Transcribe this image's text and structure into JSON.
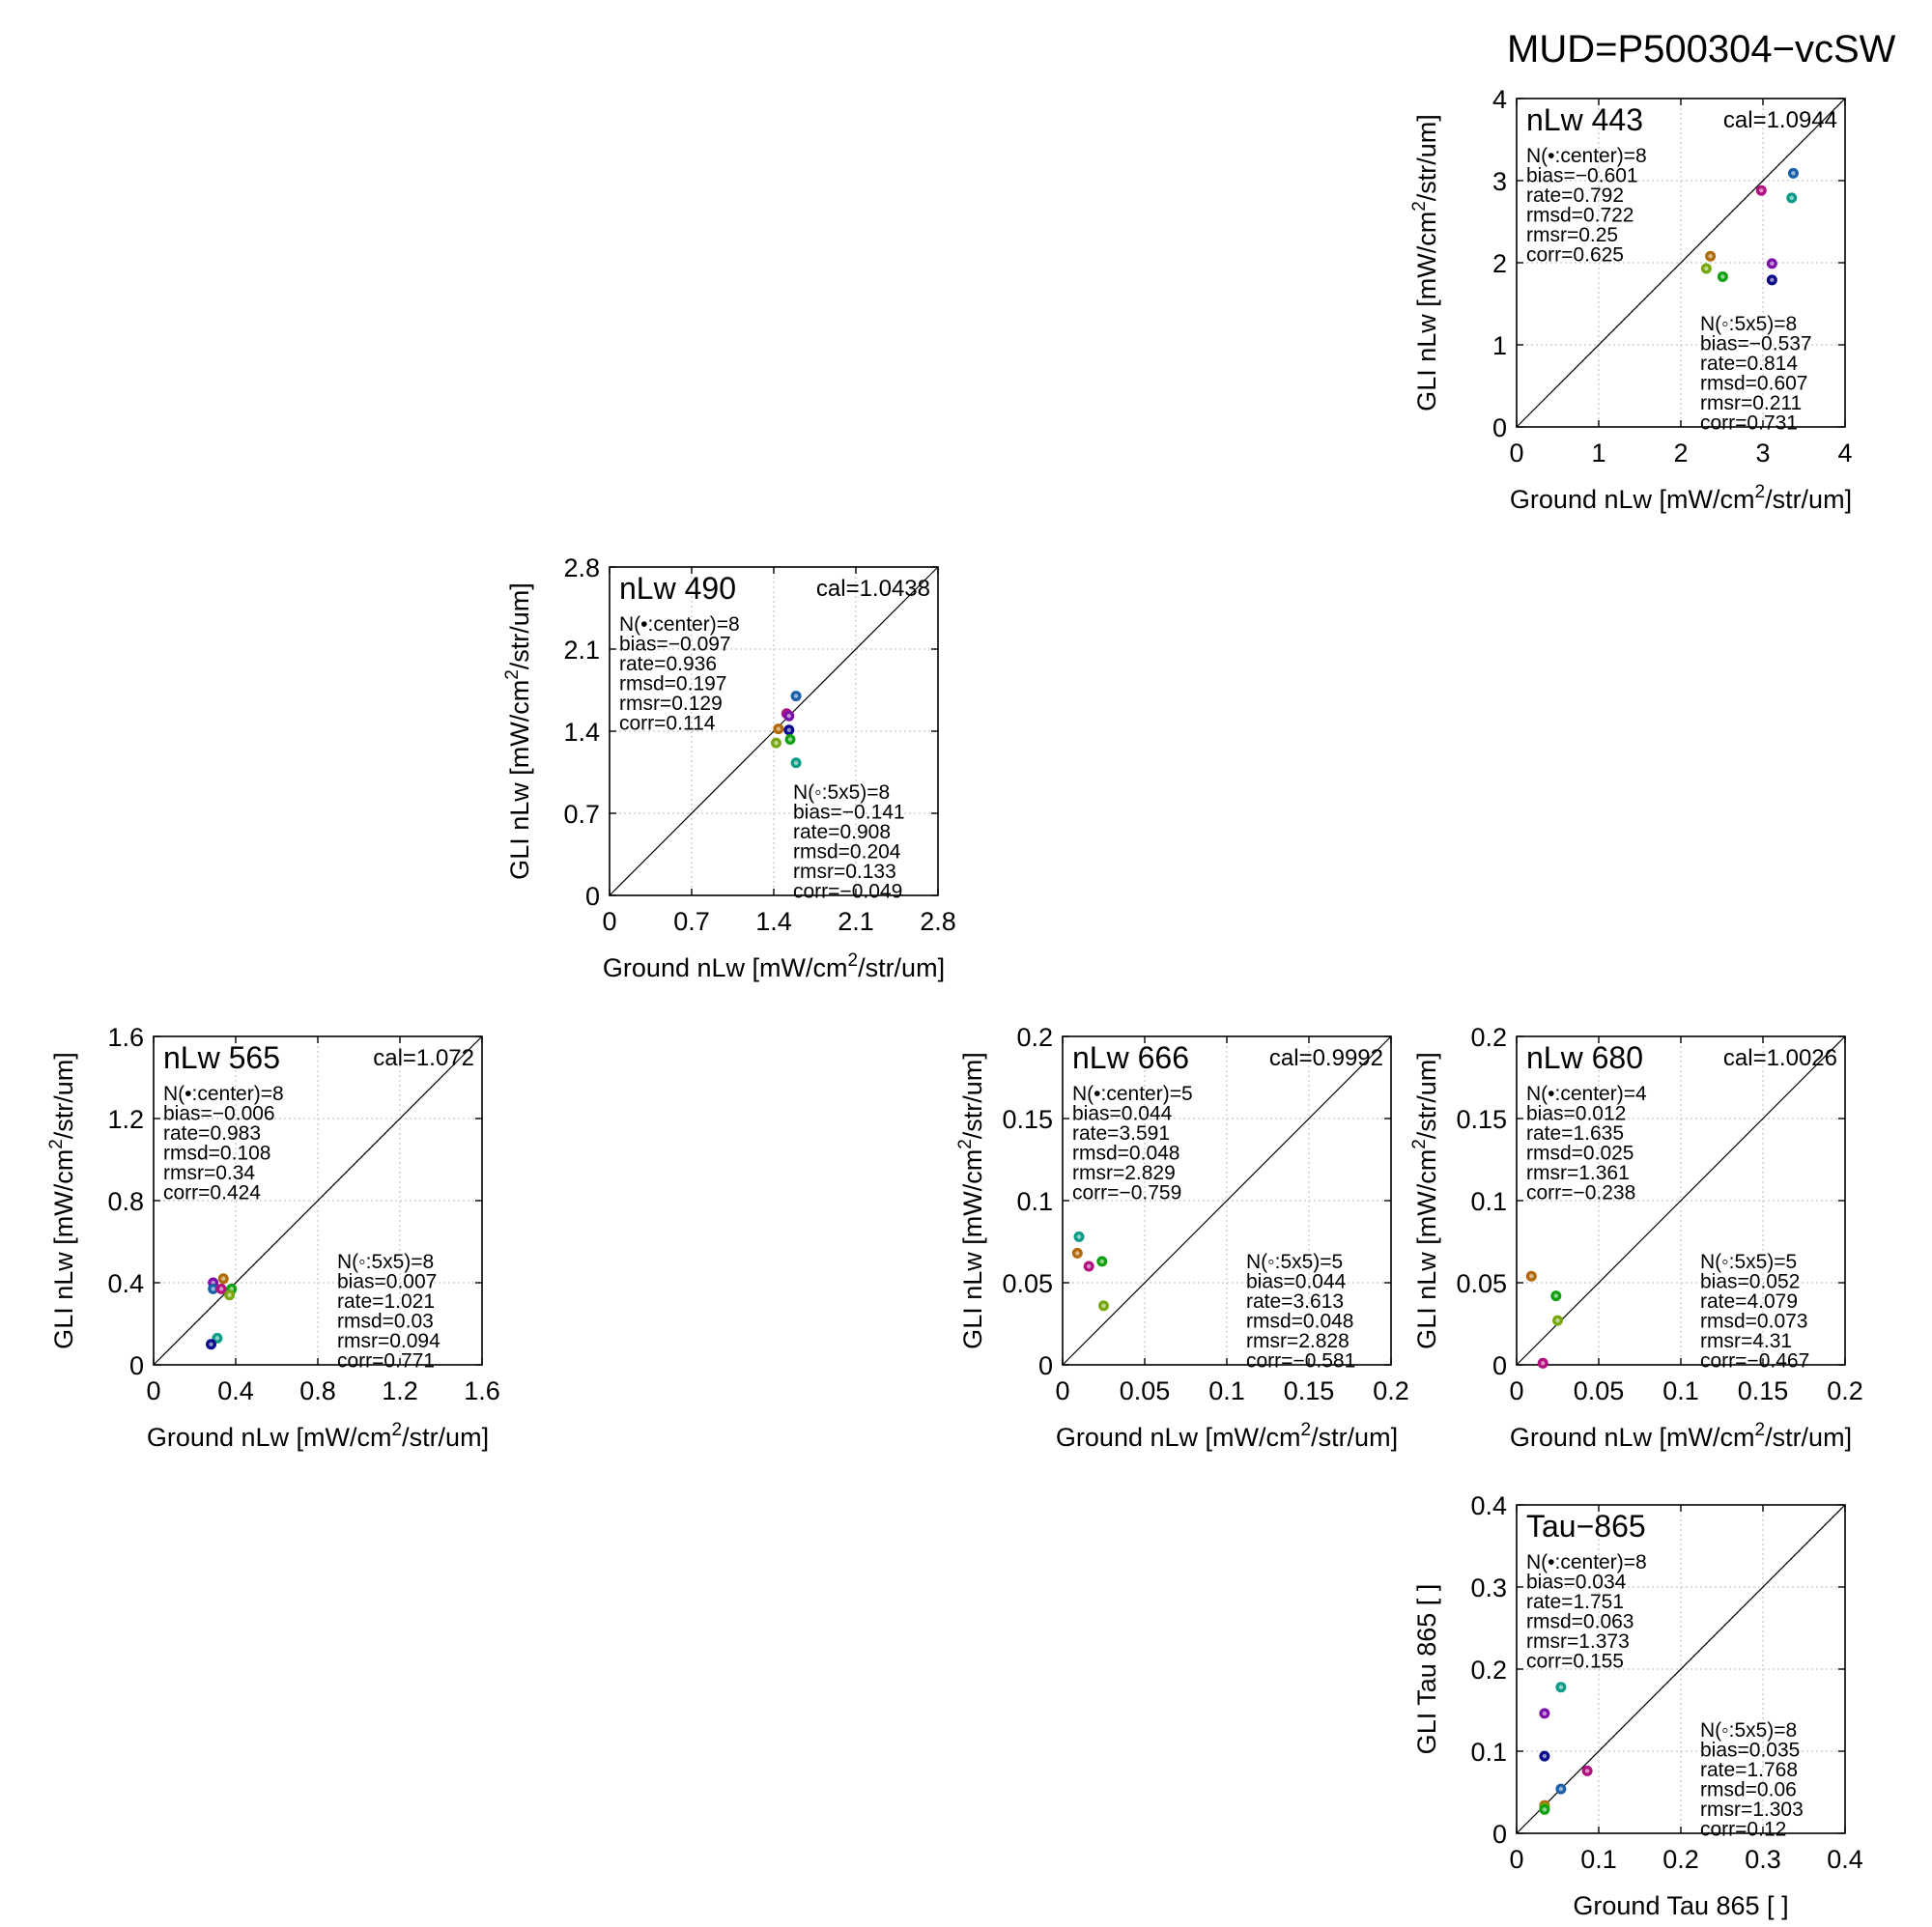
{
  "suptitle": "MUD=P500304−vcSW",
  "colors": {
    "navy": "#0a0a8c",
    "blue": "#1a5fa8",
    "purple": "#7a10a8",
    "magenta": "#b01080",
    "teal": "#0c9c88",
    "green": "#10a010",
    "yellowgreen": "#78a810",
    "orange": "#b06a08"
  },
  "chart_data": [
    {
      "id": "nlw443",
      "type": "scatter",
      "title": "nLw 443",
      "cal": "cal=1.0944",
      "xlabel": "Ground nLw [mW/cm",
      "xlabel_sup": "2",
      "xlabel_tail": "/str/um]",
      "ylabel": "GLI nLw [mW/cm",
      "ylabel_sup": "2",
      "ylabel_tail": "/str/um]",
      "xlim": [
        0,
        4
      ],
      "ylim": [
        0,
        4
      ],
      "xticks": [
        "0",
        "1",
        "2",
        "3",
        "4"
      ],
      "yticks": [
        "0",
        "1",
        "2",
        "3",
        "4"
      ],
      "stats_center": [
        "N(•:center)=8",
        "bias=−0.601",
        "rate=0.792",
        "rmsd=0.722",
        "rmsr=0.25",
        "corr=0.625"
      ],
      "stats_5x5": [
        "N(◦:5x5)=8",
        "bias=−0.537",
        "rate=0.814",
        "rmsd=0.607",
        "rmsr=0.211",
        "corr=0.731"
      ],
      "points": [
        {
          "x": 3.37,
          "y": 3.09,
          "c": "blue"
        },
        {
          "x": 2.98,
          "y": 2.88,
          "c": "magenta"
        },
        {
          "x": 3.35,
          "y": 2.79,
          "c": "teal"
        },
        {
          "x": 2.36,
          "y": 2.08,
          "c": "orange"
        },
        {
          "x": 3.11,
          "y": 1.99,
          "c": "purple"
        },
        {
          "x": 2.31,
          "y": 1.93,
          "c": "yellowgreen"
        },
        {
          "x": 2.51,
          "y": 1.83,
          "c": "green"
        },
        {
          "x": 3.11,
          "y": 1.79,
          "c": "navy"
        }
      ]
    },
    {
      "id": "nlw490",
      "type": "scatter",
      "title": "nLw 490",
      "cal": "cal=1.0438",
      "xlabel": "Ground nLw [mW/cm",
      "xlabel_sup": "2",
      "xlabel_tail": "/str/um]",
      "ylabel": "GLI nLw [mW/cm",
      "ylabel_sup": "2",
      "ylabel_tail": "/str/um]",
      "xlim": [
        0,
        2.8
      ],
      "ylim": [
        0,
        2.8
      ],
      "xticks": [
        "0",
        "0.7",
        "1.4",
        "2.1",
        "2.8"
      ],
      "yticks": [
        "0",
        "0.7",
        "1.4",
        "2.1",
        "2.8"
      ],
      "stats_center": [
        "N(•:center)=8",
        "bias=−0.097",
        "rate=0.936",
        "rmsd=0.197",
        "rmsr=0.129",
        "corr=0.114"
      ],
      "stats_5x5": [
        "N(◦:5x5)=8",
        "bias=−0.141",
        "rate=0.908",
        "rmsd=0.204",
        "rmsr=0.133",
        "corr=−0.049"
      ],
      "points": [
        {
          "x": 1.59,
          "y": 1.7,
          "c": "blue"
        },
        {
          "x": 1.51,
          "y": 1.55,
          "c": "magenta"
        },
        {
          "x": 1.53,
          "y": 1.53,
          "c": "purple"
        },
        {
          "x": 1.44,
          "y": 1.42,
          "c": "orange"
        },
        {
          "x": 1.53,
          "y": 1.41,
          "c": "navy"
        },
        {
          "x": 1.42,
          "y": 1.3,
          "c": "yellowgreen"
        },
        {
          "x": 1.54,
          "y": 1.33,
          "c": "green"
        },
        {
          "x": 1.59,
          "y": 1.13,
          "c": "teal"
        }
      ]
    },
    {
      "id": "nlw565",
      "type": "scatter",
      "title": "nLw 565",
      "cal": "cal=1.072",
      "xlabel": "Ground nLw [mW/cm",
      "xlabel_sup": "2",
      "xlabel_tail": "/str/um]",
      "ylabel": "GLI nLw [mW/cm",
      "ylabel_sup": "2",
      "ylabel_tail": "/str/um]",
      "xlim": [
        0,
        1.6
      ],
      "ylim": [
        0,
        1.6
      ],
      "xticks": [
        "0",
        "0.4",
        "0.8",
        "1.2",
        "1.6"
      ],
      "yticks": [
        "0",
        "0.4",
        "0.8",
        "1.2",
        "1.6"
      ],
      "stats_center": [
        "N(•:center)=8",
        "bias=−0.006",
        "rate=0.983",
        "rmsd=0.108",
        "rmsr=0.34",
        "corr=0.424"
      ],
      "stats_5x5": [
        "N(◦:5x5)=8",
        "bias=0.007",
        "rate=1.021",
        "rmsd=0.03",
        "rmsr=0.094",
        "corr=0.771"
      ],
      "points": [
        {
          "x": 0.34,
          "y": 0.42,
          "c": "orange"
        },
        {
          "x": 0.29,
          "y": 0.4,
          "c": "purple"
        },
        {
          "x": 0.29,
          "y": 0.37,
          "c": "blue"
        },
        {
          "x": 0.33,
          "y": 0.37,
          "c": "magenta"
        },
        {
          "x": 0.38,
          "y": 0.37,
          "c": "green"
        },
        {
          "x": 0.37,
          "y": 0.34,
          "c": "yellowgreen"
        },
        {
          "x": 0.31,
          "y": 0.13,
          "c": "teal"
        },
        {
          "x": 0.28,
          "y": 0.1,
          "c": "navy"
        }
      ]
    },
    {
      "id": "nlw666",
      "type": "scatter",
      "title": "nLw 666",
      "cal": "cal=0.9992",
      "xlabel": "Ground nLw [mW/cm",
      "xlabel_sup": "2",
      "xlabel_tail": "/str/um]",
      "ylabel": "GLI nLw [mW/cm",
      "ylabel_sup": "2",
      "ylabel_tail": "/str/um]",
      "xlim": [
        0,
        0.2
      ],
      "ylim": [
        0,
        0.2
      ],
      "xticks": [
        "0",
        "0.05",
        "0.1",
        "0.15",
        "0.2"
      ],
      "yticks": [
        "0",
        "0.05",
        "0.1",
        "0.15",
        "0.2"
      ],
      "stats_center": [
        "N(•:center)=5",
        "bias=0.044",
        "rate=3.591",
        "rmsd=0.048",
        "rmsr=2.829",
        "corr=−0.759"
      ],
      "stats_5x5": [
        "N(◦:5x5)=5",
        "bias=0.044",
        "rate=3.613",
        "rmsd=0.048",
        "rmsr=2.828",
        "corr=−0.581"
      ],
      "points": [
        {
          "x": 0.01,
          "y": 0.078,
          "c": "teal"
        },
        {
          "x": 0.009,
          "y": 0.068,
          "c": "orange"
        },
        {
          "x": 0.024,
          "y": 0.063,
          "c": "green"
        },
        {
          "x": 0.016,
          "y": 0.06,
          "c": "magenta"
        },
        {
          "x": 0.025,
          "y": 0.036,
          "c": "yellowgreen"
        }
      ]
    },
    {
      "id": "nlw680",
      "type": "scatter",
      "title": "nLw 680",
      "cal": "cal=1.0026",
      "xlabel": "Ground nLw [mW/cm",
      "xlabel_sup": "2",
      "xlabel_tail": "/str/um]",
      "ylabel": "GLI nLw [mW/cm",
      "ylabel_sup": "2",
      "ylabel_tail": "/str/um]",
      "xlim": [
        0,
        0.2
      ],
      "ylim": [
        0,
        0.2
      ],
      "xticks": [
        "0",
        "0.05",
        "0.1",
        "0.15",
        "0.2"
      ],
      "yticks": [
        "0",
        "0.05",
        "0.1",
        "0.15",
        "0.2"
      ],
      "stats_center": [
        "N(•:center)=4",
        "bias=0.012",
        "rate=1.635",
        "rmsd=0.025",
        "rmsr=1.361",
        "corr=−0.238"
      ],
      "stats_5x5": [
        "N(◦:5x5)=5",
        "bias=0.052",
        "rate=4.079",
        "rmsd=0.073",
        "rmsr=4.31",
        "corr=−0.467"
      ],
      "points": [
        {
          "x": 0.009,
          "y": 0.054,
          "c": "orange"
        },
        {
          "x": 0.024,
          "y": 0.042,
          "c": "green"
        },
        {
          "x": 0.025,
          "y": 0.027,
          "c": "yellowgreen"
        },
        {
          "x": 0.016,
          "y": 0.001,
          "c": "magenta"
        }
      ]
    },
    {
      "id": "tau865",
      "type": "scatter",
      "title": "Tau−865",
      "cal": "",
      "xlabel": "Ground Tau 865 [ ]",
      "xlabel_sup": "",
      "xlabel_tail": "",
      "ylabel": "GLI Tau 865 [ ]",
      "ylabel_sup": "",
      "ylabel_tail": "",
      "xlim": [
        0,
        0.4
      ],
      "ylim": [
        0,
        0.4
      ],
      "xticks": [
        "0",
        "0.1",
        "0.2",
        "0.3",
        "0.4"
      ],
      "yticks": [
        "0",
        "0.1",
        "0.2",
        "0.3",
        "0.4"
      ],
      "stats_center": [
        "N(•:center)=8",
        "bias=0.034",
        "rate=1.751",
        "rmsd=0.063",
        "rmsr=1.373",
        "corr=0.155"
      ],
      "stats_5x5": [
        "N(◦:5x5)=8",
        "bias=0.035",
        "rate=1.768",
        "rmsd=0.06",
        "rmsr=1.303",
        "corr=0.12"
      ],
      "points": [
        {
          "x": 0.054,
          "y": 0.178,
          "c": "teal"
        },
        {
          "x": 0.034,
          "y": 0.146,
          "c": "purple"
        },
        {
          "x": 0.034,
          "y": 0.094,
          "c": "navy"
        },
        {
          "x": 0.086,
          "y": 0.076,
          "c": "magenta"
        },
        {
          "x": 0.054,
          "y": 0.054,
          "c": "blue"
        },
        {
          "x": 0.034,
          "y": 0.034,
          "c": "orange"
        },
        {
          "x": 0.034,
          "y": 0.031,
          "c": "yellowgreen"
        },
        {
          "x": 0.034,
          "y": 0.029,
          "c": "green"
        }
      ]
    }
  ]
}
